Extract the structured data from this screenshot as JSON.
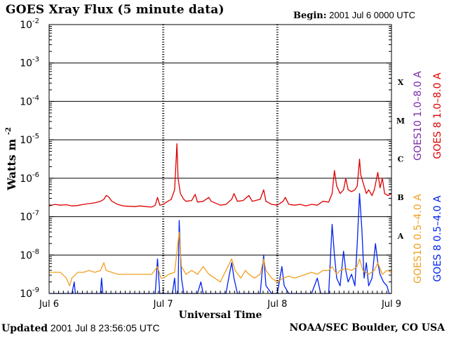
{
  "header": {
    "title": "GOES Xray Flux (5 minute data)",
    "begin_label": "Begin:",
    "begin_value": "2001 Jul 6 0000 UTC"
  },
  "footer": {
    "updated_label": "Updated",
    "updated_value": "2001 Jul  8 23:56:05 UTC",
    "credit": "NOAA/SEC Boulder, CO USA"
  },
  "chart_data": {
    "type": "line",
    "title": "GOES Xray Flux (5 minute data)",
    "xlabel": "Universal Time",
    "ylabel": "Watts m",
    "ylabel_sup": "-2",
    "xlim": [
      0,
      3
    ],
    "x_unit": "days since 2001 Jul 6 00:00 UTC",
    "x_ticks": [
      {
        "x": 0,
        "label": "Jul 6"
      },
      {
        "x": 1,
        "label": "Jul 7"
      },
      {
        "x": 2,
        "label": "Jul 8"
      },
      {
        "x": 3,
        "label": "Jul 9"
      }
    ],
    "y_scale": "log",
    "ylim_exp": [
      -9,
      -2
    ],
    "y_ticks": [
      {
        "exp": -2,
        "base": "10",
        "sup": "-2"
      },
      {
        "exp": -3,
        "base": "10",
        "sup": "-3"
      },
      {
        "exp": -4,
        "base": "10",
        "sup": "-4"
      },
      {
        "exp": -5,
        "base": "10",
        "sup": "-5"
      },
      {
        "exp": -6,
        "base": "10",
        "sup": "-6"
      },
      {
        "exp": -7,
        "base": "10",
        "sup": "-7"
      },
      {
        "exp": -8,
        "base": "10",
        "sup": "-8"
      },
      {
        "exp": -9,
        "base": "10",
        "sup": "-9"
      }
    ],
    "flare_classes": [
      {
        "label": "X",
        "exp": -3.5
      },
      {
        "label": "M",
        "exp": -4.5
      },
      {
        "label": "C",
        "exp": -5.5
      },
      {
        "label": "B",
        "exp": -6.5
      },
      {
        "label": "A",
        "exp": -7.5
      }
    ],
    "grid": "horizontal",
    "series": [
      {
        "name": "GOES 8 1.0-8.0 A",
        "color": "#dd0000",
        "values_exp": [
          [
            0.0,
            -6.72
          ],
          [
            0.05,
            -6.68
          ],
          [
            0.1,
            -6.7
          ],
          [
            0.15,
            -6.69
          ],
          [
            0.2,
            -6.72
          ],
          [
            0.25,
            -6.71
          ],
          [
            0.3,
            -6.68
          ],
          [
            0.35,
            -6.66
          ],
          [
            0.4,
            -6.64
          ],
          [
            0.45,
            -6.6
          ],
          [
            0.48,
            -6.55
          ],
          [
            0.5,
            -6.45
          ],
          [
            0.52,
            -6.48
          ],
          [
            0.55,
            -6.6
          ],
          [
            0.6,
            -6.68
          ],
          [
            0.65,
            -6.72
          ],
          [
            0.7,
            -6.73
          ],
          [
            0.75,
            -6.74
          ],
          [
            0.8,
            -6.72
          ],
          [
            0.85,
            -6.74
          ],
          [
            0.9,
            -6.75
          ],
          [
            0.93,
            -6.7
          ],
          [
            0.95,
            -6.5
          ],
          [
            0.97,
            -6.7
          ],
          [
            1.0,
            -6.68
          ],
          [
            1.04,
            -6.6
          ],
          [
            1.07,
            -6.55
          ],
          [
            1.1,
            -6.3
          ],
          [
            1.12,
            -5.1
          ],
          [
            1.13,
            -6.0
          ],
          [
            1.15,
            -6.4
          ],
          [
            1.18,
            -6.55
          ],
          [
            1.2,
            -6.6
          ],
          [
            1.25,
            -6.58
          ],
          [
            1.28,
            -6.42
          ],
          [
            1.3,
            -6.62
          ],
          [
            1.35,
            -6.6
          ],
          [
            1.4,
            -6.5
          ],
          [
            1.42,
            -6.6
          ],
          [
            1.5,
            -6.7
          ],
          [
            1.55,
            -6.68
          ],
          [
            1.6,
            -6.55
          ],
          [
            1.62,
            -6.4
          ],
          [
            1.65,
            -6.6
          ],
          [
            1.7,
            -6.58
          ],
          [
            1.75,
            -6.45
          ],
          [
            1.78,
            -6.6
          ],
          [
            1.85,
            -6.55
          ],
          [
            1.88,
            -6.3
          ],
          [
            1.9,
            -6.6
          ],
          [
            1.95,
            -6.68
          ],
          [
            2.0,
            -6.7
          ],
          [
            2.05,
            -6.6
          ],
          [
            2.07,
            -6.5
          ],
          [
            2.1,
            -6.68
          ],
          [
            2.15,
            -6.7
          ],
          [
            2.2,
            -6.68
          ],
          [
            2.25,
            -6.72
          ],
          [
            2.3,
            -6.68
          ],
          [
            2.35,
            -6.7
          ],
          [
            2.4,
            -6.6
          ],
          [
            2.45,
            -6.62
          ],
          [
            2.48,
            -6.4
          ],
          [
            2.5,
            -5.8
          ],
          [
            2.52,
            -6.2
          ],
          [
            2.55,
            -6.4
          ],
          [
            2.58,
            -6.3
          ],
          [
            2.6,
            -6.0
          ],
          [
            2.62,
            -6.3
          ],
          [
            2.65,
            -6.35
          ],
          [
            2.68,
            -6.3
          ],
          [
            2.7,
            -6.2
          ],
          [
            2.72,
            -5.5
          ],
          [
            2.73,
            -5.9
          ],
          [
            2.75,
            -6.1
          ],
          [
            2.78,
            -6.4
          ],
          [
            2.8,
            -6.3
          ],
          [
            2.83,
            -6.45
          ],
          [
            2.85,
            -6.3
          ],
          [
            2.88,
            -5.85
          ],
          [
            2.9,
            -6.25
          ],
          [
            2.92,
            -6.0
          ],
          [
            2.94,
            -6.4
          ],
          [
            2.97,
            -6.45
          ],
          [
            3.0,
            -6.4
          ]
        ]
      },
      {
        "name": "GOES10 1.0-8.0 A",
        "color": "#7a2aa8",
        "values_exp": []
      },
      {
        "name": "GOES 8 0.5-4.0 A",
        "color": "#0022ee",
        "values_exp": [
          [
            0.0,
            -9.0
          ],
          [
            0.2,
            -9.0
          ],
          [
            0.22,
            -8.7
          ],
          [
            0.23,
            -9.0
          ],
          [
            0.45,
            -9.0
          ],
          [
            0.46,
            -8.6
          ],
          [
            0.47,
            -9.0
          ],
          [
            0.93,
            -9.0
          ],
          [
            0.95,
            -8.1
          ],
          [
            0.97,
            -9.0
          ],
          [
            1.08,
            -9.0
          ],
          [
            1.1,
            -8.6
          ],
          [
            1.11,
            -9.0
          ],
          [
            1.13,
            -9.0
          ],
          [
            1.14,
            -7.1
          ],
          [
            1.16,
            -8.6
          ],
          [
            1.18,
            -9.0
          ],
          [
            1.3,
            -9.0
          ],
          [
            1.33,
            -8.7
          ],
          [
            1.35,
            -9.0
          ],
          [
            1.55,
            -9.0
          ],
          [
            1.58,
            -8.5
          ],
          [
            1.6,
            -8.2
          ],
          [
            1.62,
            -8.6
          ],
          [
            1.65,
            -9.0
          ],
          [
            1.85,
            -9.0
          ],
          [
            1.88,
            -8.0
          ],
          [
            1.9,
            -8.8
          ],
          [
            1.95,
            -9.0
          ],
          [
            2.0,
            -9.0
          ],
          [
            2.04,
            -8.3
          ],
          [
            2.06,
            -8.8
          ],
          [
            2.1,
            -9.0
          ],
          [
            2.3,
            -9.0
          ],
          [
            2.35,
            -8.6
          ],
          [
            2.38,
            -9.0
          ],
          [
            2.45,
            -9.0
          ],
          [
            2.48,
            -7.2
          ],
          [
            2.5,
            -8.0
          ],
          [
            2.52,
            -8.6
          ],
          [
            2.55,
            -8.8
          ],
          [
            2.58,
            -7.9
          ],
          [
            2.6,
            -8.4
          ],
          [
            2.62,
            -8.7
          ],
          [
            2.65,
            -8.5
          ],
          [
            2.68,
            -8.8
          ],
          [
            2.7,
            -7.7
          ],
          [
            2.72,
            -6.4
          ],
          [
            2.74,
            -7.3
          ],
          [
            2.76,
            -8.6
          ],
          [
            2.78,
            -8.2
          ],
          [
            2.8,
            -8.8
          ],
          [
            2.83,
            -8.6
          ],
          [
            2.86,
            -7.7
          ],
          [
            2.88,
            -8.2
          ],
          [
            2.9,
            -8.5
          ],
          [
            2.93,
            -8.7
          ],
          [
            2.96,
            -8.8
          ],
          [
            2.98,
            -9.0
          ],
          [
            3.0,
            -9.0
          ]
        ]
      },
      {
        "name": "GOES10 0.5-4.0 A",
        "color": "#f0a020",
        "values_exp": [
          [
            0.0,
            -8.45
          ],
          [
            0.1,
            -8.45
          ],
          [
            0.15,
            -8.6
          ],
          [
            0.18,
            -8.8
          ],
          [
            0.2,
            -8.6
          ],
          [
            0.25,
            -8.45
          ],
          [
            0.3,
            -8.45
          ],
          [
            0.35,
            -8.4
          ],
          [
            0.4,
            -8.45
          ],
          [
            0.45,
            -8.4
          ],
          [
            0.48,
            -8.2
          ],
          [
            0.5,
            -8.4
          ],
          [
            0.55,
            -8.45
          ],
          [
            0.6,
            -8.5
          ],
          [
            0.7,
            -8.5
          ],
          [
            0.8,
            -8.5
          ],
          [
            0.9,
            -8.5
          ],
          [
            0.95,
            -8.3
          ],
          [
            0.98,
            -8.6
          ],
          [
            1.0,
            -8.6
          ],
          [
            1.05,
            -8.5
          ],
          [
            1.1,
            -8.45
          ],
          [
            1.14,
            -7.4
          ],
          [
            1.16,
            -8.3
          ],
          [
            1.2,
            -8.5
          ],
          [
            1.25,
            -8.4
          ],
          [
            1.3,
            -8.5
          ],
          [
            1.35,
            -8.3
          ],
          [
            1.4,
            -8.5
          ],
          [
            1.45,
            -8.6
          ],
          [
            1.5,
            -8.7
          ],
          [
            1.55,
            -8.4
          ],
          [
            1.6,
            -8.1
          ],
          [
            1.63,
            -8.4
          ],
          [
            1.68,
            -8.6
          ],
          [
            1.72,
            -8.4
          ],
          [
            1.75,
            -8.5
          ],
          [
            1.8,
            -8.6
          ],
          [
            1.85,
            -8.5
          ],
          [
            1.88,
            -8.1
          ],
          [
            1.9,
            -8.4
          ],
          [
            1.95,
            -8.6
          ],
          [
            2.0,
            -8.7
          ],
          [
            2.05,
            -8.6
          ],
          [
            2.1,
            -8.55
          ],
          [
            2.15,
            -8.6
          ],
          [
            2.2,
            -8.55
          ],
          [
            2.25,
            -8.5
          ],
          [
            2.3,
            -8.45
          ],
          [
            2.35,
            -8.5
          ],
          [
            2.4,
            -8.4
          ],
          [
            2.45,
            -8.4
          ],
          [
            2.48,
            -8.3
          ],
          [
            2.52,
            -8.5
          ],
          [
            2.55,
            -8.4
          ],
          [
            2.6,
            -8.35
          ],
          [
            2.65,
            -8.4
          ],
          [
            2.7,
            -8.3
          ],
          [
            2.72,
            -8.1
          ],
          [
            2.75,
            -8.4
          ],
          [
            2.8,
            -8.5
          ],
          [
            2.85,
            -8.4
          ],
          [
            2.88,
            -8.2
          ],
          [
            2.92,
            -8.5
          ],
          [
            2.96,
            -8.4
          ],
          [
            3.0,
            -8.45
          ]
        ]
      }
    ],
    "legend": {
      "placement": "right, vertical",
      "entries": [
        {
          "label": "GOES10 1.0–8.0 A",
          "color": "#7a2aa8"
        },
        {
          "label": "GOES 8 1.0–8.0 A",
          "color": "#dd0000"
        },
        {
          "label": "GOES10 0.5–4.0 A",
          "color": "#f0a020"
        },
        {
          "label": "GOES 8 0.5–4.0 A",
          "color": "#0022ee"
        }
      ]
    }
  }
}
